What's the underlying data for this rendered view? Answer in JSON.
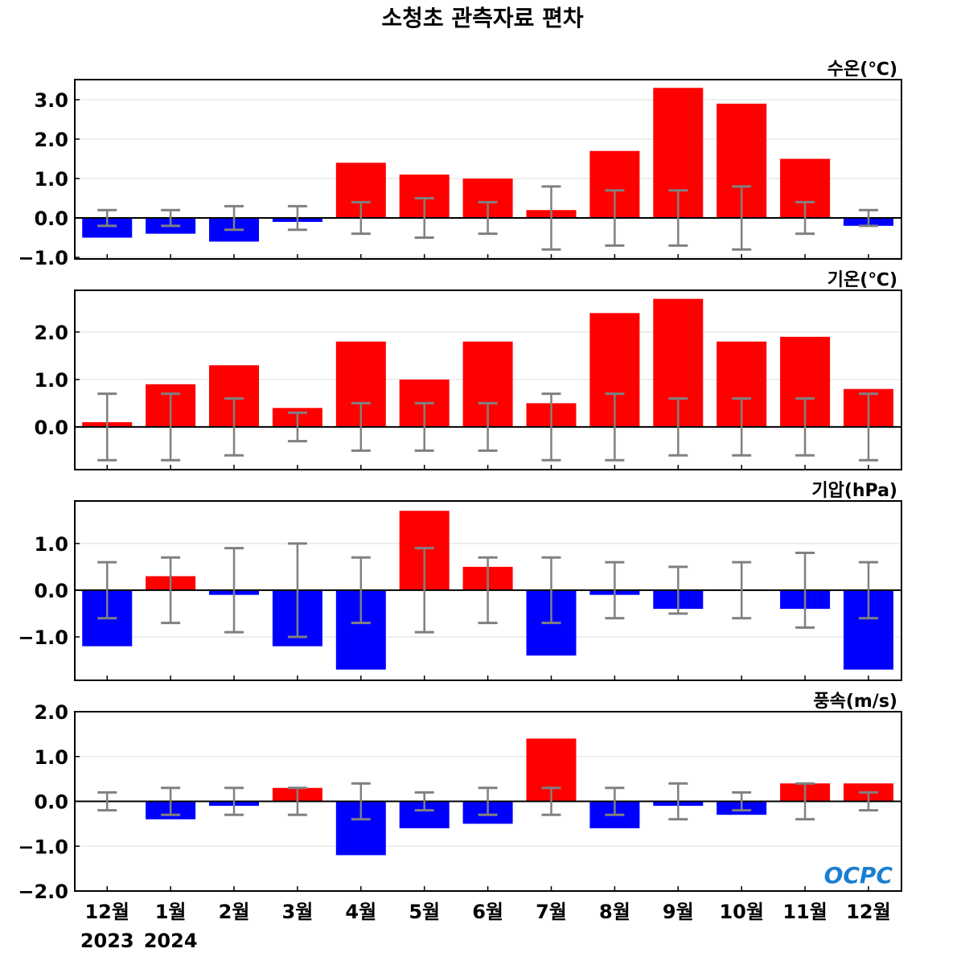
{
  "chart_data": [
    {
      "type": "bar",
      "title": "소청초 관측자료 편차",
      "unit_label": "수온(℃)",
      "categories": [
        "12월",
        "1월",
        "2월",
        "3월",
        "4월",
        "5월",
        "6월",
        "7월",
        "8월",
        "9월",
        "10월",
        "11월",
        "12월"
      ],
      "year_labels": [
        "2023",
        "2024"
      ],
      "values": [
        -0.5,
        -0.4,
        -0.6,
        -0.1,
        1.4,
        1.1,
        1.0,
        0.2,
        1.7,
        3.3,
        2.9,
        1.5,
        -0.2
      ],
      "error": [
        0.2,
        0.2,
        0.3,
        0.3,
        0.4,
        0.5,
        0.4,
        0.8,
        0.7,
        0.7,
        0.8,
        0.4,
        0.2
      ],
      "ylim": [
        -1.04,
        3.51
      ],
      "yticks": [
        -1.0,
        0.0,
        1.0,
        2.0,
        3.0
      ],
      "ytick_labels": [
        "−1.0",
        "0.0",
        "1.0",
        "2.0",
        "3.0"
      ],
      "grid": true
    },
    {
      "type": "bar",
      "unit_label": "기온(℃)",
      "values": [
        0.1,
        0.9,
        1.3,
        0.4,
        1.8,
        1.0,
        1.8,
        0.5,
        2.4,
        2.7,
        1.8,
        1.9,
        0.8
      ],
      "error": [
        0.7,
        0.7,
        0.6,
        0.3,
        0.5,
        0.5,
        0.5,
        0.7,
        0.7,
        0.6,
        0.6,
        0.6,
        0.7
      ],
      "ylim": [
        -0.9,
        2.88
      ],
      "yticks": [
        0.0,
        1.0,
        2.0
      ],
      "ytick_labels": [
        "0.0",
        "1.0",
        "2.0"
      ],
      "grid": true
    },
    {
      "type": "bar",
      "unit_label": "기압(hPa)",
      "values": [
        -1.2,
        0.3,
        -0.1,
        -1.2,
        -1.7,
        1.7,
        0.5,
        -1.4,
        -0.1,
        -0.4,
        0.0,
        -0.4,
        -1.7
      ],
      "error": [
        0.6,
        0.7,
        0.9,
        1.0,
        0.7,
        0.9,
        0.7,
        0.7,
        0.6,
        0.5,
        0.6,
        0.8,
        0.6
      ],
      "ylim": [
        -1.93,
        1.91
      ],
      "yticks": [
        -1.0,
        0.0,
        1.0
      ],
      "ytick_labels": [
        "−1.0",
        "0.0",
        "1.0"
      ],
      "grid": true
    },
    {
      "type": "bar",
      "unit_label": "풍속(m/s)",
      "values": [
        0.0,
        -0.4,
        -0.1,
        0.3,
        -1.2,
        -0.6,
        -0.5,
        1.4,
        -0.6,
        -0.1,
        -0.3,
        0.4,
        0.4
      ],
      "error": [
        0.2,
        0.3,
        0.3,
        0.3,
        0.4,
        0.2,
        0.3,
        0.3,
        0.3,
        0.4,
        0.2,
        0.4,
        0.2
      ],
      "ylim": [
        -2.0,
        2.0
      ],
      "yticks": [
        -2.0,
        -1.0,
        0.0,
        1.0,
        2.0
      ],
      "ytick_labels": [
        "−2.0",
        "−1.0",
        "0.0",
        "1.0",
        "2.0"
      ],
      "grid": true
    }
  ],
  "colors": {
    "positive": "#ff0000",
    "negative": "#0000ff",
    "error_bar": "#808080",
    "grid": "#dddddd"
  },
  "logo": "OCPC"
}
